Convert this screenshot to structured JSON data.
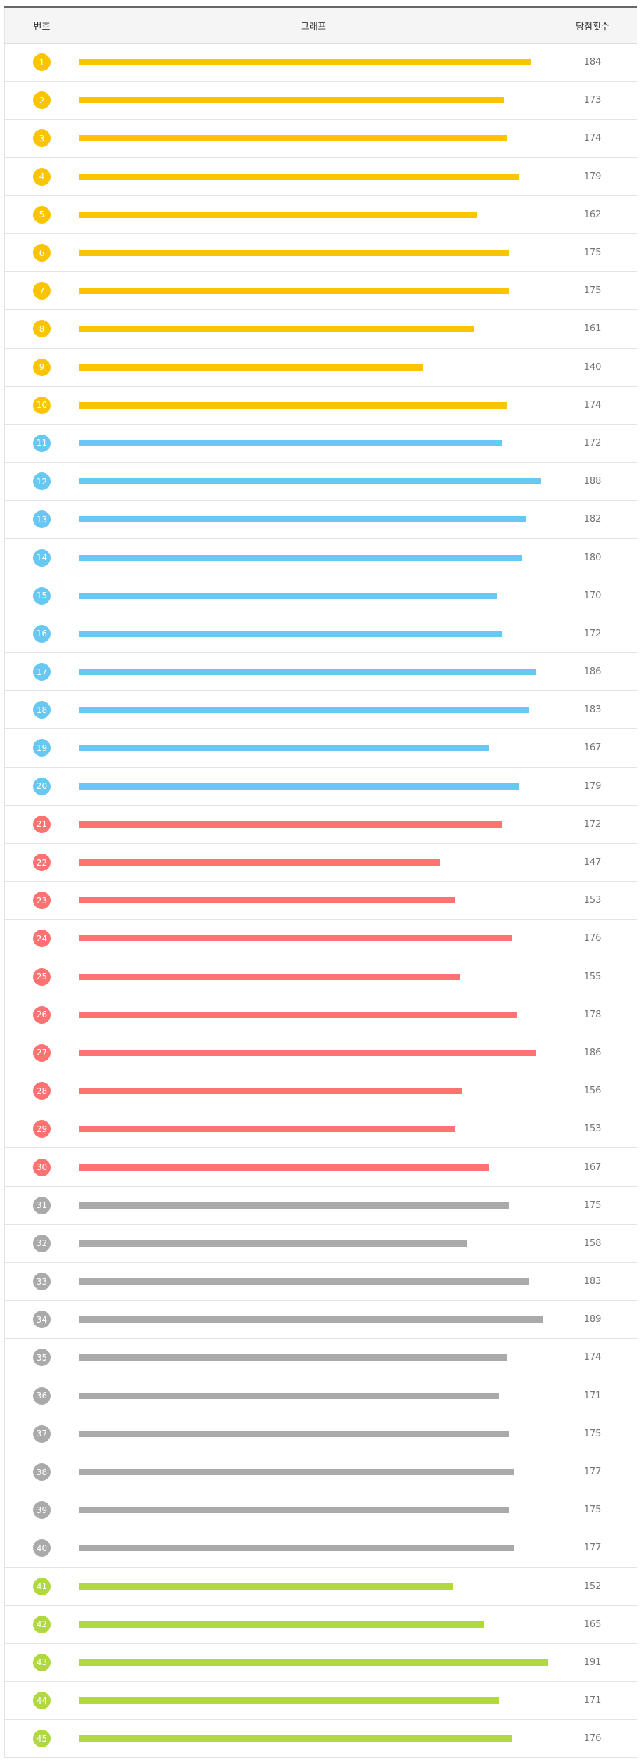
{
  "table": {
    "headers": [
      "번호",
      "그래프",
      "당첨횟수"
    ],
    "colors": [
      "#fbc400",
      "#69c8f2",
      "#ff7272",
      "#aaaaaa",
      "#b0d840"
    ],
    "rows": [
      [
        1,
        184
      ],
      [
        2,
        173
      ],
      [
        3,
        174
      ],
      [
        4,
        179
      ],
      [
        5,
        162
      ],
      [
        6,
        175
      ],
      [
        7,
        175
      ],
      [
        8,
        161
      ],
      [
        9,
        140
      ],
      [
        10,
        174
      ],
      [
        11,
        172
      ],
      [
        12,
        188
      ],
      [
        13,
        182
      ],
      [
        14,
        180
      ],
      [
        15,
        170
      ],
      [
        16,
        172
      ],
      [
        17,
        186
      ],
      [
        18,
        183
      ],
      [
        19,
        167
      ],
      [
        20,
        179
      ],
      [
        21,
        172
      ],
      [
        22,
        147
      ],
      [
        23,
        153
      ],
      [
        24,
        176
      ],
      [
        25,
        155
      ],
      [
        26,
        178
      ],
      [
        27,
        186
      ],
      [
        28,
        156
      ],
      [
        29,
        153
      ],
      [
        30,
        167
      ],
      [
        31,
        175
      ],
      [
        32,
        158
      ],
      [
        33,
        183
      ],
      [
        34,
        189
      ],
      [
        35,
        174
      ],
      [
        36,
        171
      ],
      [
        37,
        175
      ],
      [
        38,
        177
      ],
      [
        39,
        175
      ],
      [
        40,
        177
      ],
      [
        41,
        152
      ],
      [
        42,
        165
      ],
      [
        43,
        191
      ],
      [
        44,
        171
      ],
      [
        45,
        176
      ]
    ]
  }
}
